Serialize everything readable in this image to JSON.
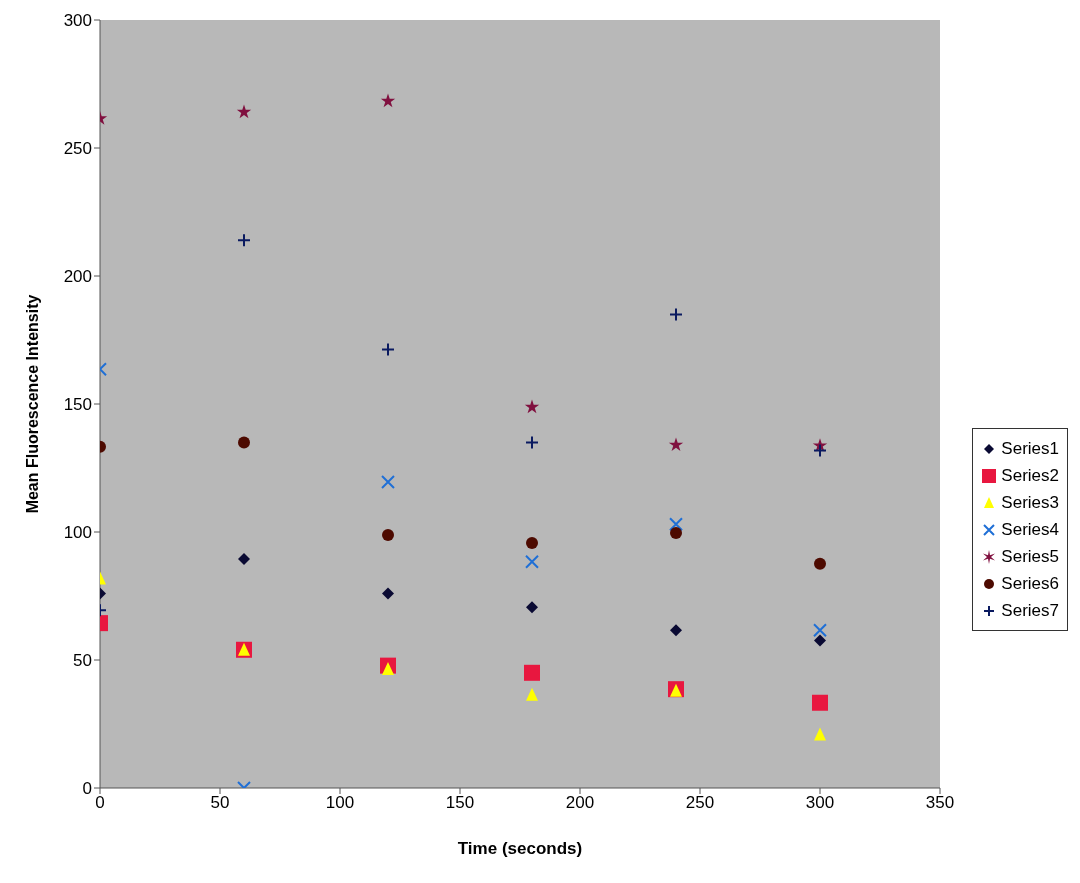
{
  "chart_data": {
    "type": "scatter",
    "xlabel": "Time (seconds)",
    "ylabel": "Mean Fluorescence Intensity",
    "x": [
      0,
      60,
      120,
      180,
      240,
      300
    ],
    "xlim": [
      0,
      350
    ],
    "xticks": [
      0,
      50,
      100,
      150,
      200,
      250,
      300,
      350
    ],
    "ylim": [
      0,
      300
    ],
    "yticks": [
      0,
      50,
      100,
      150,
      200,
      250,
      300
    ],
    "legend": "right",
    "series": [
      {
        "name": "Series1",
        "color": "#0a0a33",
        "marker": "diamond",
        "values": [
          76,
          89.5,
          76,
          70.6,
          61.6,
          57.6
        ]
      },
      {
        "name": "Series2",
        "color": "#e8173f",
        "marker": "square",
        "values": [
          64.4,
          54,
          47.8,
          45,
          38.6,
          33.3
        ]
      },
      {
        "name": "Series3",
        "color": "#ffff00",
        "marker": "triangle",
        "values": [
          81.8,
          54,
          46.5,
          36.4,
          38,
          20.9
        ]
      },
      {
        "name": "Series4",
        "color": "#1f6fd6",
        "marker": "cross",
        "values": [
          163.6,
          0,
          119.5,
          88.4,
          103,
          61.6
        ]
      },
      {
        "name": "Series5",
        "color": "#80103f",
        "marker": "star",
        "values": [
          261.5,
          264,
          268.3,
          148.8,
          134,
          133.7
        ]
      },
      {
        "name": "Series6",
        "color": "#4d0a00",
        "marker": "circle",
        "values": [
          133.3,
          135,
          98.8,
          95.7,
          99.6,
          87.6
        ]
      },
      {
        "name": "Series7",
        "color": "#0a1a60",
        "marker": "plus",
        "values": [
          69.4,
          214,
          171.3,
          135,
          185,
          131.8
        ]
      }
    ]
  }
}
